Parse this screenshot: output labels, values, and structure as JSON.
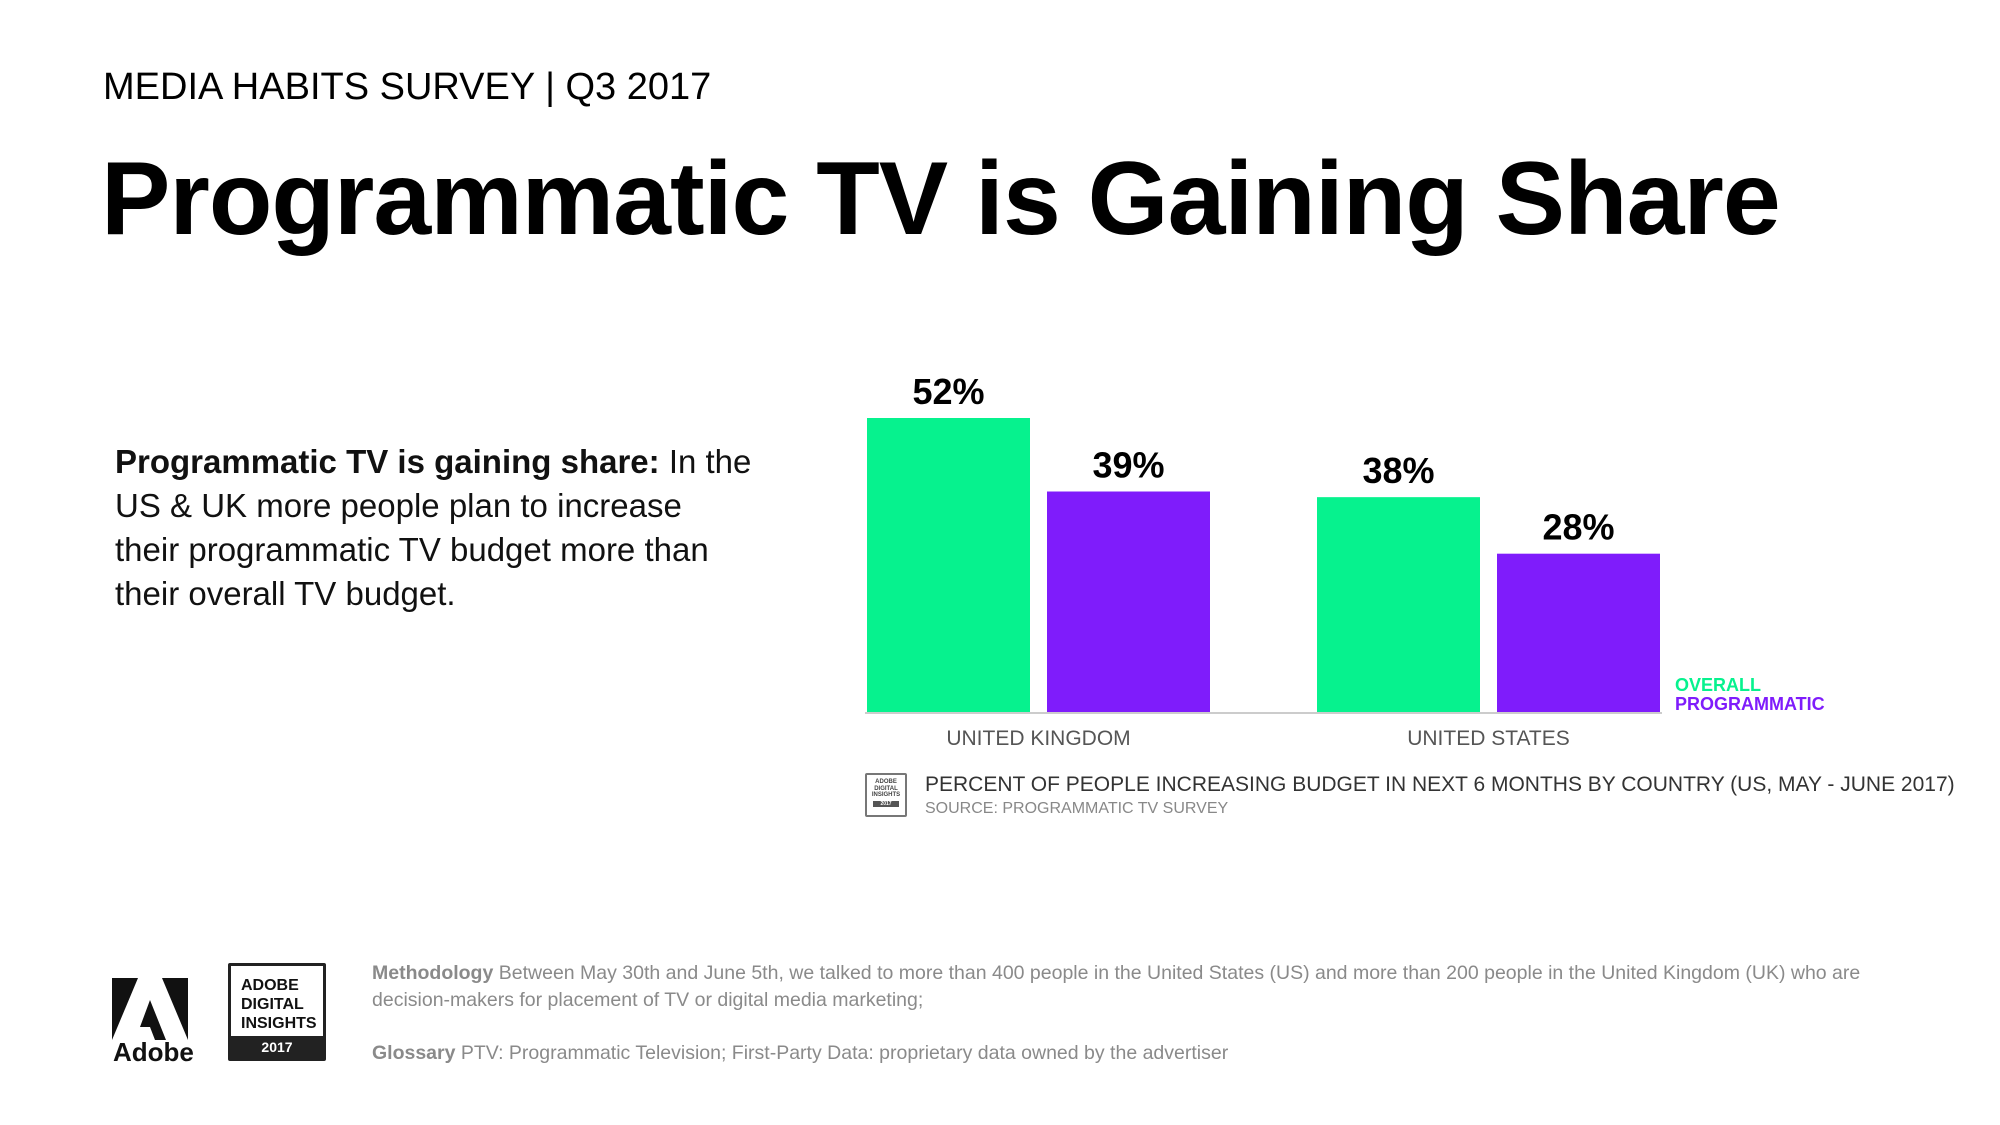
{
  "header": {
    "eyebrow": "MEDIA HABITS SURVEY | Q3 2017",
    "title": "Programmatic TV is Gaining Share"
  },
  "body": {
    "lead": "Programmatic TV is gaining share:",
    "text": " In the US & UK more people plan to increase their programmatic TV budget more than their overall TV budget."
  },
  "chart_data": {
    "type": "bar",
    "categories": [
      "UNITED KINGDOM",
      "UNITED STATES"
    ],
    "series": [
      {
        "name": "OVERALL",
        "values": [
          52,
          38
        ],
        "color": "#06F28E"
      },
      {
        "name": "PROGRAMMATIC",
        "values": [
          39,
          28
        ],
        "color": "#7F1CFB"
      }
    ],
    "value_suffix": "%",
    "ylim": [
      0,
      52
    ],
    "title": "PERCENT OF PEOPLE INCREASING BUDGET IN NEXT 6 MONTHS BY COUNTRY (US, MAY - JUNE 2017)",
    "subtitle": "SOURCE: PROGRAMMATIC TV SURVEY",
    "legend_position": "right"
  },
  "source_badge": {
    "line1": "ADOBE",
    "line2": "DIGITAL",
    "line3": "INSIGHTS",
    "year": "2017"
  },
  "footer": {
    "adobe_label": "Adobe",
    "badge_line1": "ADOBE",
    "badge_line2": "DIGITAL",
    "badge_line3": "INSIGHTS",
    "badge_year": "2017",
    "methodology_label": "Methodology",
    "methodology_text": " Between May 30th and June 5th, we talked to more than 400 people in the United States (US) and more than 200 people in the United Kingdom (UK) who are decision-makers for placement of TV or digital media marketing;",
    "glossary_label": "Glossary",
    "glossary_text": " PTV: Programmatic Television; First-Party Data: proprietary data owned by the advertiser"
  }
}
